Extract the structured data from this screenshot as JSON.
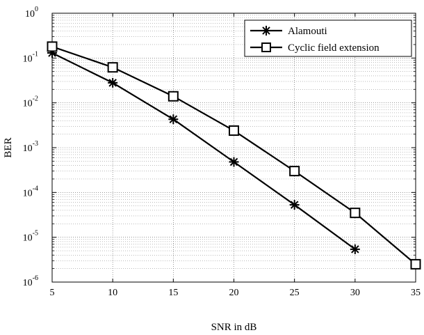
{
  "chart_data": {
    "type": "line",
    "xlabel": "SNR in dB",
    "ylabel": "BER",
    "xlim": [
      5,
      35
    ],
    "ylim": [
      1e-06,
      1
    ],
    "yscale": "log",
    "grid": true,
    "legend_position": "top-right",
    "x_ticks": [
      "5",
      "10",
      "15",
      "20",
      "25",
      "30",
      "35"
    ],
    "y_ticks": [
      {
        "base": "10",
        "exp": "-6",
        "value": 1e-06
      },
      {
        "base": "10",
        "exp": "-5",
        "value": 1e-05
      },
      {
        "base": "10",
        "exp": "-4",
        "value": 0.0001
      },
      {
        "base": "10",
        "exp": "-3",
        "value": 0.001
      },
      {
        "base": "10",
        "exp": "-2",
        "value": 0.01
      },
      {
        "base": "10",
        "exp": "-1",
        "value": 0.1
      },
      {
        "base": "10",
        "exp": "0",
        "value": 1
      }
    ],
    "series": [
      {
        "name": "Alamouti",
        "marker": "asterisk",
        "x": [
          5,
          10,
          15,
          20,
          25,
          30
        ],
        "y": [
          0.13,
          0.028,
          0.0043,
          0.00048,
          5.3e-05,
          5.4e-06
        ]
      },
      {
        "name": "Cyclic field extension",
        "marker": "square",
        "x": [
          5,
          10,
          15,
          20,
          25,
          30,
          35
        ],
        "y": [
          0.18,
          0.062,
          0.014,
          0.0024,
          0.0003,
          3.5e-05,
          2.5e-06
        ]
      }
    ]
  }
}
